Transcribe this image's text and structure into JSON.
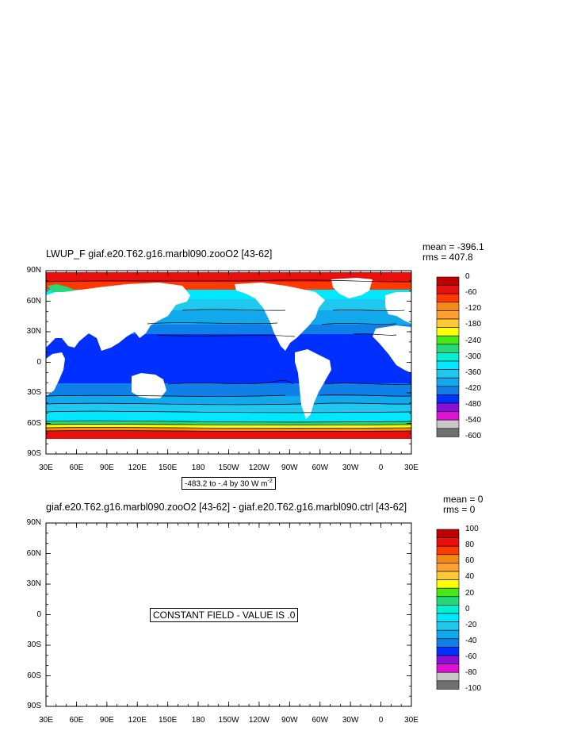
{
  "panel1": {
    "title": "LWUP_F giaf.e20.T62.g16.marbl090.zooO2 [43-62]",
    "mean": "mean = -396.1",
    "rms": "rms = 407.8",
    "info_prefix": "-483.2 to -.4 by 30  W m",
    "info_sup": "-2",
    "colorbar_labels": [
      "0",
      "-60",
      "-120",
      "-180",
      "-240",
      "-300",
      "-360",
      "-420",
      "-480",
      "-540",
      "-600"
    ]
  },
  "panel2": {
    "title": "giaf.e20.T62.g16.marbl090.zooO2 [43-62] - giaf.e20.T62.g16.marbl090.ctrl [43-62]",
    "mean": "mean = 0",
    "rms": "rms = 0",
    "constant_msg": "CONSTANT FIELD - VALUE IS .0",
    "colorbar_labels": [
      "100",
      "80",
      "60",
      "40",
      "20",
      "0",
      "-20",
      "-40",
      "-60",
      "-80",
      "-100"
    ]
  },
  "lat_labels": [
    "90N",
    "60N",
    "30N",
    "0",
    "30S",
    "60S",
    "90S"
  ],
  "lon_labels": [
    "30E",
    "60E",
    "90E",
    "120E",
    "150E",
    "180",
    "150W",
    "120W",
    "90W",
    "60W",
    "30W",
    "0",
    "30E"
  ],
  "colorbar_colors": [
    "#c00000",
    "#e8100e",
    "#ff3a00",
    "#f58a12",
    "#ffa030",
    "#ffc838",
    "#ffff00",
    "#48e818",
    "#26d878",
    "#00f0d0",
    "#00e8ff",
    "#20c8f0",
    "#12a8ec",
    "#1080e8",
    "#0030ff",
    "#8a10d8",
    "#e010d8",
    "#c8c8c8",
    "#707070"
  ],
  "chart_data": [
    {
      "type": "heatmap",
      "title": "LWUP_F giaf.e20.T62.g16.marbl090.zooO2 [43-62]",
      "units": "W m-2",
      "range": [
        -483.2,
        -0.4
      ],
      "contour_interval": 30,
      "mean": -396.1,
      "rms": 407.8,
      "colorbar_ticks": [
        0,
        -60,
        -120,
        -180,
        -240,
        -300,
        -360,
        -420,
        -480,
        -540,
        -600
      ],
      "approx_zonal_field": [
        {
          "lat": 85,
          "value": -30
        },
        {
          "lat": 70,
          "value": -330
        },
        {
          "lat": 50,
          "value": -380
        },
        {
          "lat": 30,
          "value": -420
        },
        {
          "lat": 0,
          "value": -470
        },
        {
          "lat": -30,
          "value": -440
        },
        {
          "lat": -45,
          "value": -390
        },
        {
          "lat": -55,
          "value": -340
        },
        {
          "lat": -65,
          "value": -100
        }
      ]
    },
    {
      "type": "heatmap",
      "title": "giaf.e20.T62.g16.marbl090.zooO2 [43-62] - giaf.e20.T62.g16.marbl090.ctrl [43-62]",
      "mean": 0,
      "rms": 0,
      "constant_value": 0,
      "colorbar_ticks": [
        100,
        80,
        60,
        40,
        20,
        0,
        -20,
        -40,
        -60,
        -80,
        -100
      ]
    }
  ]
}
